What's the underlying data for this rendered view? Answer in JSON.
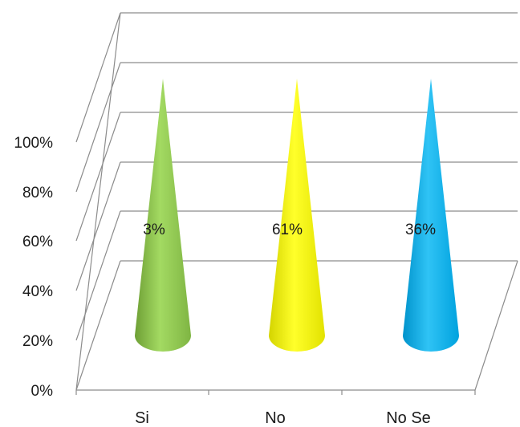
{
  "chart_data": {
    "type": "bar",
    "style": "3d-cone",
    "categories": [
      "Si",
      "No",
      "No Se"
    ],
    "values": [
      3,
      61,
      36
    ],
    "data_labels": [
      "3%",
      "61%",
      "36%"
    ],
    "colors": [
      "#92d050",
      "#ffff00",
      "#00b0f0"
    ],
    "y_ticks": [
      "0%",
      "20%",
      "40%",
      "60%",
      "80%",
      "100%"
    ],
    "ylim": [
      0,
      100
    ],
    "grid": true,
    "legend": "none",
    "title": "",
    "xlabel": "",
    "ylabel": ""
  }
}
